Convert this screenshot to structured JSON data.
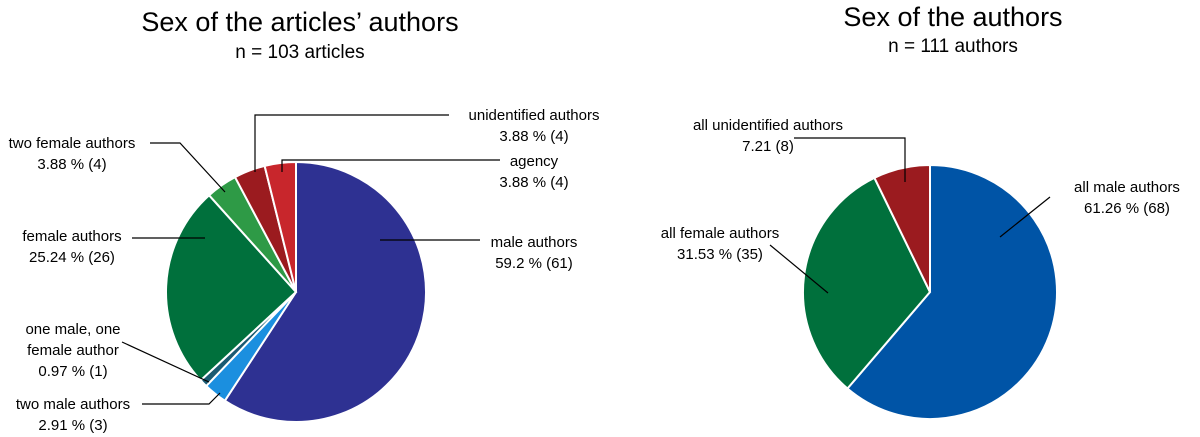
{
  "chart_data": [
    {
      "type": "pie",
      "title": "Sex of the articles’ authors",
      "subtitle": "n = 103 articles",
      "slices": [
        {
          "name": "male authors",
          "value_label": "59.2 % (61)",
          "percent": 59.2,
          "count": 61,
          "color": "#2e3192"
        },
        {
          "name": "two male authors",
          "value_label": "2.91 % (3)",
          "percent": 2.91,
          "count": 3,
          "color": "#1b8fdf"
        },
        {
          "name": "one male, one female author",
          "name_lines": [
            "one male, one",
            "female author"
          ],
          "value_label": "0.97 % (1)",
          "percent": 0.97,
          "count": 1,
          "color": "#1a5a72"
        },
        {
          "name": "female authors",
          "value_label": "25.24 % (26)",
          "percent": 25.24,
          "count": 26,
          "color": "#00703c"
        },
        {
          "name": "two female authors",
          "value_label": "3.88 % (4)",
          "percent": 3.88,
          "count": 4,
          "color": "#2e9a46"
        },
        {
          "name": "unidentified authors",
          "value_label": "3.88 % (4)",
          "percent": 3.88,
          "count": 4,
          "color": "#9b1b1f"
        },
        {
          "name": "agency",
          "value_label": "3.88 % (4)",
          "percent": 3.88,
          "count": 4,
          "color": "#c8262c"
        }
      ]
    },
    {
      "type": "pie",
      "title": "Sex of the authors",
      "subtitle": "n = 111 authors",
      "slices": [
        {
          "name": "all male authors",
          "value_label": "61.26 % (68)",
          "percent": 61.26,
          "count": 68,
          "color": "#0054a6"
        },
        {
          "name": "all female authors",
          "value_label": "31.53 % (35)",
          "percent": 31.53,
          "count": 35,
          "color": "#00703c"
        },
        {
          "name": "all unidentified authors",
          "value_label": "7.21 (8)",
          "percent": 7.21,
          "count": 8,
          "color": "#9b1b1f"
        }
      ]
    }
  ]
}
